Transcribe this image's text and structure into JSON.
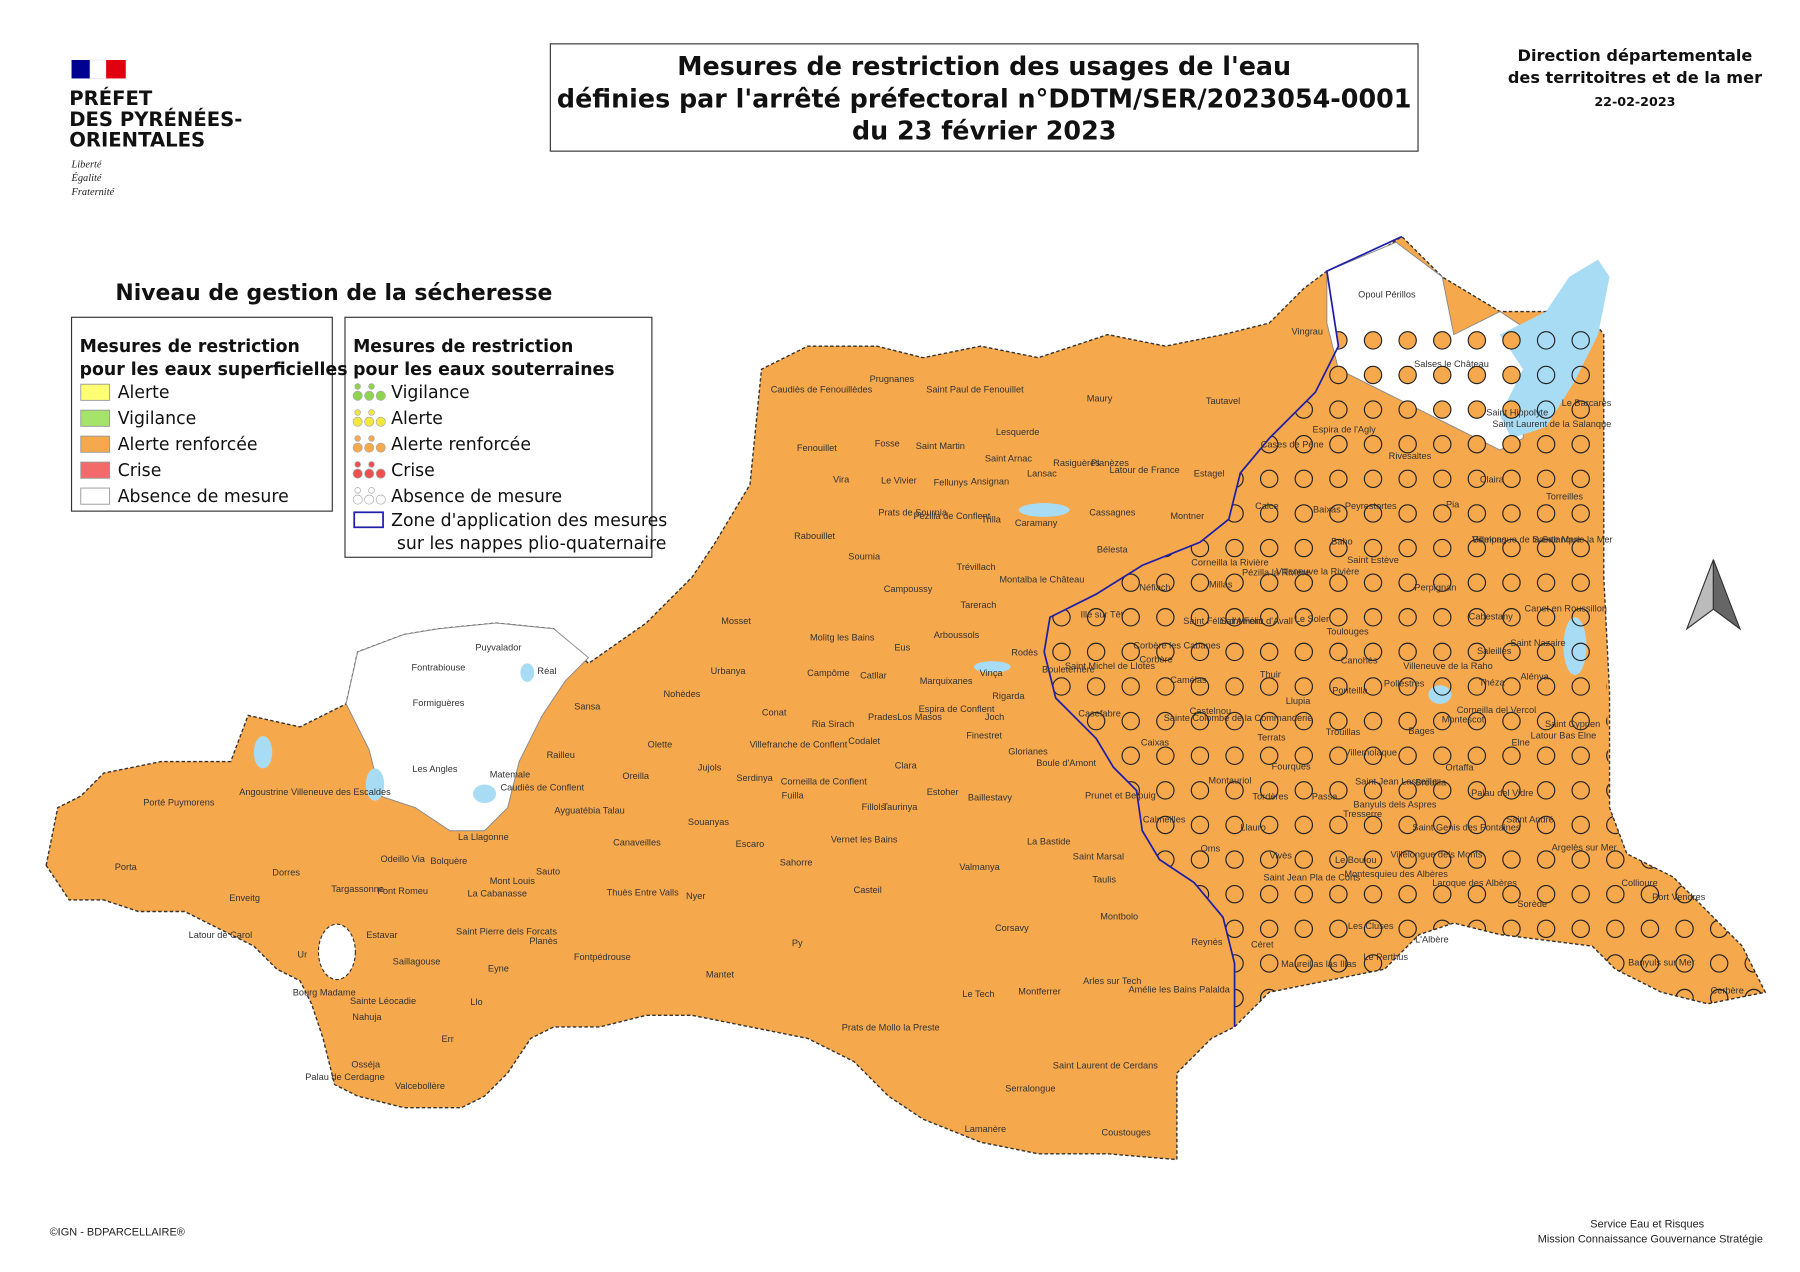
{
  "header": {
    "prefet": [
      "PRÉFET",
      "DES PYRÉNÉES-",
      "ORIENTALES"
    ],
    "motto": [
      "Liberté",
      "Égalité",
      "Fraternité"
    ],
    "title": [
      "Mesures de restriction des usages de l'eau",
      "définies par l'arrêté préfectoral n°DDTM/SER/2023054-0001",
      "du 23 février 2023"
    ],
    "service": [
      "Direction départementale",
      "des territoitres et de la mer"
    ],
    "date": "22-02-2023"
  },
  "legend": {
    "title": "Niveau de gestion de la sécheresse",
    "surface": {
      "title": [
        "Mesures de restriction",
        "pour les eaux superficielles"
      ],
      "items": [
        {
          "label": "Alerte",
          "color": "#ffff73"
        },
        {
          "label": "Vigilance",
          "color": "#a6e36a"
        },
        {
          "label": "Alerte renforcée",
          "color": "#f6a84d"
        },
        {
          "label": "Crise",
          "color": "#f26a6a"
        },
        {
          "label": "Absence de mesure",
          "color": "#ffffff"
        }
      ]
    },
    "groundwater": {
      "title": [
        "Mesures de restriction",
        "pour les eaux souterraines"
      ],
      "items": [
        {
          "label": "Vigilance",
          "color": "#8fd44f"
        },
        {
          "label": "Alerte",
          "color": "#f2e83c"
        },
        {
          "label": "Alerte renforcée",
          "color": "#f6a84d"
        },
        {
          "label": "Crise",
          "color": "#ef4f4f"
        },
        {
          "label": "Absence de mesure",
          "color": "#ffffff"
        }
      ],
      "zone": [
        "Zone d'application des mesures",
        "sur les nappes plio-quaternaire"
      ],
      "zone_color": "#1f1fa8"
    }
  },
  "map": {
    "communes": [
      "Caudiès de Fenouillèdes",
      "Prugnanes",
      "Saint Paul de Fenouillet",
      "Maury",
      "Tautavel",
      "Vingrau",
      "Opoul Périllos",
      "Salses le Château",
      "Saint Hippolyte",
      "Le Barcarès",
      "Espira de l'Agly",
      "Rivesaltes",
      "Cases de Pène",
      "Fenouillet",
      "Fosse",
      "Saint Martin",
      "Lesquerde",
      "Saint Arnac",
      "Lansac",
      "Rasiguères",
      "Planèzes",
      "Latour de France",
      "Estagel",
      "Vira",
      "Le Vivier",
      "Fellunys",
      "Ansignan",
      "Prats de Sournia",
      "Pézilla de Conflent",
      "Trilla",
      "Caramany",
      "Cassagnes",
      "Montner",
      "Rabouillet",
      "Sournia",
      "Campoussy",
      "Trévillach",
      "Montalba le Château",
      "Bélesta",
      "Tarerach",
      "Mosset",
      "Molitg les Bains",
      "Eus",
      "Arboussols",
      "Rodès",
      "Vinça",
      "Urbanya",
      "Campôme",
      "Catllar",
      "Marquixanes",
      "Sansa",
      "Nohèdes",
      "Conat",
      "Ria Sirach",
      "Prades",
      "Los Masos",
      "Espira de Conflent",
      "Rigarda",
      "Joch",
      "Finestret",
      "Casefabre",
      "Bouleternère",
      "Ille sur Têt",
      "Villefranche de Conflent",
      "Codalet",
      "Olette",
      "Railleu",
      "Clara",
      "Glorianes",
      "Boule d'Amont",
      "Jujols",
      "Serdinya",
      "Corneilla de Conflent",
      "Oreilla",
      "Fuilla",
      "Estoher",
      "Baillestavy",
      "Fillols",
      "Taurinya",
      "Caudiès de Conflent",
      "Ayguatébia Talau",
      "Matemale",
      "Les Angles",
      "Formiguères",
      "Fontrabiouse",
      "Puyvalador",
      "Réal",
      "Porté Puymorens",
      "Angoustrine Villeneuve des Escaldes",
      "La Llagonne",
      "Souanyas",
      "Canaveilles",
      "Escaro",
      "Vernet les Bains",
      "La Bastide",
      "Porta",
      "Dorres",
      "Odeillo Via",
      "Font Romeu",
      "Bolquère",
      "Mont Louis",
      "Sauto",
      "La Cabanasse",
      "Sahorre",
      "Valmanya",
      "Targassonne",
      "Enveitg",
      "Thuès Entre Valls",
      "Nyer",
      "Casteil",
      "Saint Marsal",
      "Taulis",
      "Latour de Carol",
      "Estavar",
      "Saint Pierre dels Forcats",
      "Planès",
      "Montbolo",
      "Corsavy",
      "Fontpédrouse",
      "Saillagouse",
      "Ur",
      "Eyne",
      "Py",
      "Mantet",
      "Reynès",
      "Bourg Madame",
      "Sainte Léocadie",
      "Llo",
      "Nahuja",
      "Arles sur Tech",
      "Amélie les Bains Palalda",
      "Le Tech",
      "Montferrer",
      "Err",
      "Prats de Mollo la Preste",
      "Osséja",
      "Palau de Cerdagne",
      "Valcebollère",
      "Saint Laurent de Cerdans",
      "Serralongue",
      "Lamanère",
      "Coustouges",
      "Prunet et Belpuig",
      "Caixas",
      "Castelnou",
      "Calmeilles",
      "Oms",
      "Céret",
      "Maureillas las Illas",
      "Le Perthus",
      "Les Cluses",
      "L'Albère",
      "Llauro",
      "Tordères",
      "Montauriol",
      "Fourques",
      "Passa",
      "Trouillas",
      "Terrats",
      "Thuir",
      "Llupia",
      "Ponteilla",
      "Canohès",
      "Toulouges",
      "Le Soler",
      "Saint Estève",
      "Baho",
      "Villeneuve la Rivière",
      "Pézilla la Rivière",
      "Corneilla la Rivière",
      "Millas",
      "Néfiach",
      "Saint Féliu d'Amont",
      "Saint Féliu d'Avall",
      "Corbère les Cabanes",
      "Corbère",
      "Saint Michel de Llotes",
      "Camélas",
      "Sainte Colombe de la Commanderie",
      "Perpignan",
      "Peyrestortes",
      "Baixas",
      "Calce",
      "Pia",
      "Claira",
      "Torreilles",
      "Sainte Marie la Mer",
      "Villelongue de la Salanque",
      "Bompas",
      "Saint Laurent de la Salanque",
      "Canet en Roussillon",
      "Cabestany",
      "Saint Nazaire",
      "Saleilles",
      "Alénya",
      "Théza",
      "Villeneuve de la Raho",
      "Pollestres",
      "Corneilla del Vercol",
      "Montescot",
      "Saint Cyprien",
      "Latour Bas Elne",
      "Elne",
      "Bages",
      "Villemolaque",
      "Saint Jean Lasseille",
      "Banyuls dels Aspres",
      "Brouilla",
      "Ortaffa",
      "Palau del Vidre",
      "Tresserre",
      "Saint Genis des Fontaines",
      "Saint André",
      "Argelès sur Mer",
      "Villelongue dels Monts",
      "Montesquieu des Albères",
      "Le Boulou",
      "Vivès",
      "Saint Jean Pla de Corts",
      "Laroque des Albères",
      "Sorède",
      "Collioure",
      "Port Vendres",
      "Banyuls sur Mer",
      "Cerbère"
    ]
  },
  "footer": {
    "credit": "©IGN - BDPARCELLAIRE®",
    "service": [
      "Service Eau et Risques",
      "Mission Connaissance Gouvernance Stratégie"
    ]
  }
}
